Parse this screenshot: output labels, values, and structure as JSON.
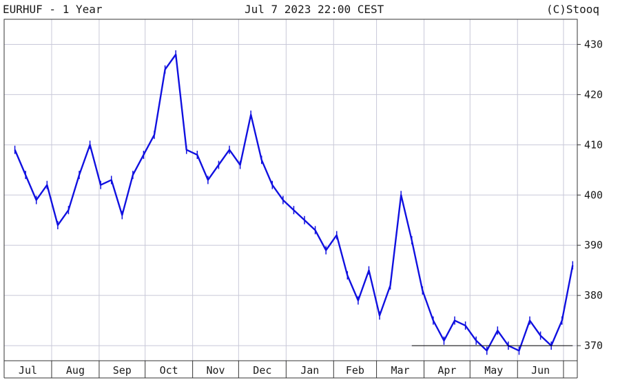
{
  "header": {
    "symbol_period": "EURHUF - 1 Year",
    "datetime": "Jul 7 2023 22:00 CEST",
    "credit": "(C)Stooq"
  },
  "colors": {
    "series": "#1010e0",
    "grid": "#c8c8d8",
    "axis": "#333333",
    "support_line": "#000000"
  },
  "chart_data": {
    "type": "line",
    "style": "ohlc-bars",
    "title": "EURHUF - 1 Year",
    "xlabel": "",
    "ylabel": "",
    "ylim": [
      367,
      435
    ],
    "y_ticks": [
      370,
      380,
      390,
      400,
      410,
      420,
      430
    ],
    "y_tick_labels": [
      "370",
      "380",
      "390",
      "400",
      "410",
      "420",
      "430"
    ],
    "x_tick_labels": [
      "Jul",
      "Aug",
      "Sep",
      "Oct",
      "Nov",
      "Dec",
      "Jan",
      "Feb",
      "Mar",
      "Apr",
      "May",
      "Jun"
    ],
    "grid": true,
    "y_axis_position": "right",
    "series": [
      {
        "x": [
          "2022-07-08",
          "2022-07-15",
          "2022-07-22",
          "2022-07-29",
          "2022-08-05",
          "2022-08-12",
          "2022-08-19",
          "2022-08-26",
          "2022-09-02",
          "2022-09-09",
          "2022-09-16",
          "2022-09-23",
          "2022-09-30",
          "2022-10-07",
          "2022-10-14",
          "2022-10-21",
          "2022-10-28",
          "2022-11-04",
          "2022-11-11",
          "2022-11-18",
          "2022-11-25",
          "2022-12-02",
          "2022-12-09",
          "2022-12-16",
          "2022-12-23",
          "2022-12-30",
          "2023-01-06",
          "2023-01-13",
          "2023-01-20",
          "2023-01-27",
          "2023-02-03",
          "2023-02-10",
          "2023-02-17",
          "2023-02-24",
          "2023-03-03",
          "2023-03-10",
          "2023-03-17",
          "2023-03-24",
          "2023-03-31",
          "2023-04-07",
          "2023-04-14",
          "2023-04-21",
          "2023-04-28",
          "2023-05-05",
          "2023-05-12",
          "2023-05-19",
          "2023-05-26",
          "2023-06-02",
          "2023-06-09",
          "2023-06-16",
          "2023-06-23",
          "2023-06-30",
          "2023-07-07"
        ],
        "values": [
          409,
          404,
          399,
          402,
          394,
          397,
          404,
          410,
          402,
          403,
          396,
          404,
          408,
          412,
          425,
          428,
          409,
          408,
          403,
          406,
          409,
          406,
          416,
          407,
          402,
          399,
          397,
          395,
          393,
          389,
          392,
          384,
          379,
          385,
          376,
          382,
          400,
          391,
          381,
          375,
          371,
          375,
          374,
          371,
          369,
          373,
          370,
          369,
          375,
          372,
          370,
          375,
          386
        ]
      }
    ],
    "annotations": [
      {
        "type": "horizontal_line",
        "value": 370,
        "from": "2023-03-24",
        "to": "2023-07-07"
      }
    ]
  }
}
